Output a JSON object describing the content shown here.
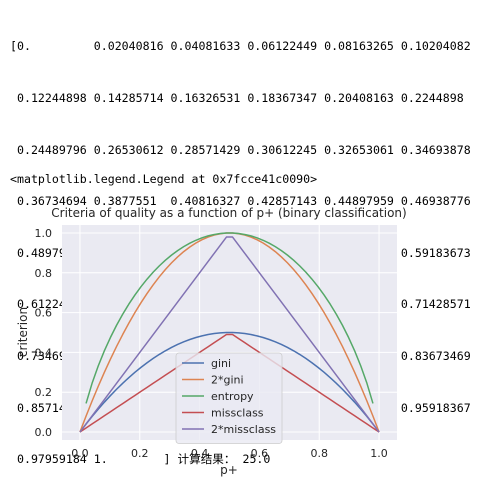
{
  "output": {
    "array_lines": [
      "[0.         0.02040816 0.04081633 0.06122449 0.08163265 0.10204082",
      " 0.12244898 0.14285714 0.16326531 0.18367347 0.20408163 0.2244898 ",
      " 0.24489796 0.26530612 0.28571429 0.30612245 0.32653061 0.34693878",
      " 0.36734694 0.3877551  0.40816327 0.42857143 0.44897959 0.46938776",
      " 0.48979592 0.51020408 0.53061224 0.55102041 0.57142857 0.59183673",
      " 0.6122449  0.63265306 0.65306122 0.67346939 0.69387755 0.71428571",
      " 0.73469388 0.75510204 0.7755102  0.79591837 0.81632653 0.83673469",
      " 0.85714286 0.87755102 0.89795918 0.91836735 0.93877551 0.95918367",
      " 0.97959184 1.        ] 计算结果： 25.0"
    ],
    "legend_repr": "<matplotlib.legend.Legend at 0x7fcce41c0090>"
  },
  "chart_data": {
    "type": "line",
    "title": "Criteria of quality as a function of p+ (binary classification)",
    "xlabel": "p+",
    "ylabel": "criterion",
    "xlim": [
      -0.06,
      1.06
    ],
    "ylim": [
      -0.04,
      1.04
    ],
    "xticks": [
      "0.0",
      "0.2",
      "0.4",
      "0.6",
      "0.8",
      "1.0"
    ],
    "yticks": [
      "0.0",
      "0.2",
      "0.4",
      "0.6",
      "0.8",
      "1.0"
    ],
    "grid": true,
    "legend_position": "lower-center",
    "x": {
      "start": 0.0,
      "stop": 1.0,
      "count": 50
    },
    "series": [
      {
        "name": "gini",
        "color": "#4c72b0",
        "formula": "2p(1-p)"
      },
      {
        "name": "2*gini",
        "color": "#dd8452",
        "formula": "4p(1-p)"
      },
      {
        "name": "entropy",
        "color": "#55a868",
        "formula": "-p*log2(p)-(1-p)*log2(1-p)"
      },
      {
        "name": "missclass",
        "color": "#c44e52",
        "formula": "1-max(p,1-p)"
      },
      {
        "name": "2*missclass",
        "color": "#8172b3",
        "formula": "2(1-max(p,1-p))"
      }
    ],
    "background": "#eaeaf2"
  }
}
